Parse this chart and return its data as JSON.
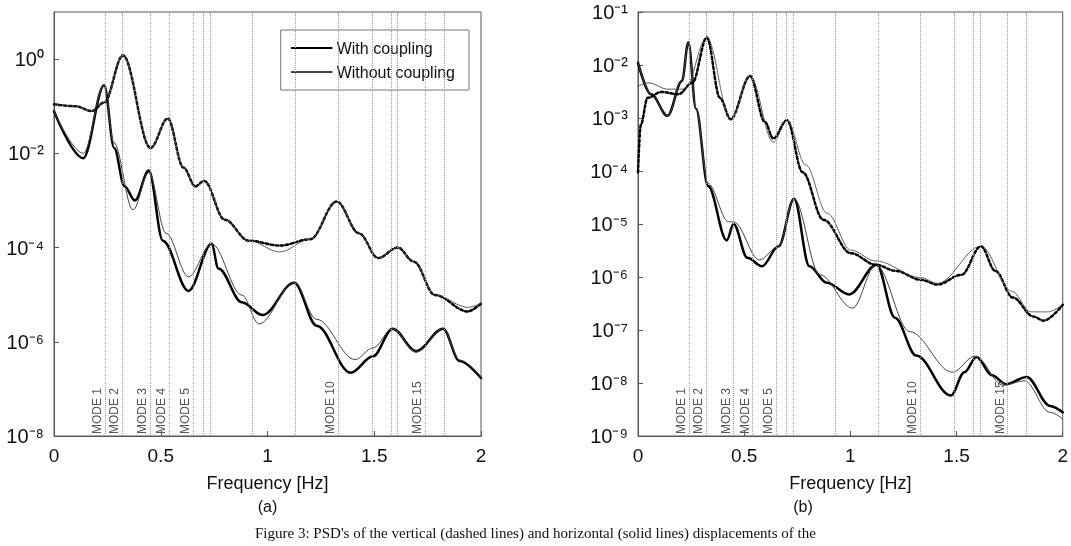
{
  "chart_data": [
    {
      "type": "line",
      "xlabel": "Frequency [Hz]",
      "annotations": [
        "(a)",
        "Figure 3: PSD's of the vertical (dashed lines) and horizontal (solid lines) displacements of the"
      ],
      "xlim": [
        0,
        2
      ],
      "xticks": [
        0,
        0.5,
        1,
        1.5,
        2
      ],
      "ylim": [
        1e-08,
        10
      ],
      "yticks": [
        {
          "value": 1e-08,
          "label": "10⁻⁸"
        },
        {
          "value": 1e-06,
          "label": "10⁻⁶"
        },
        {
          "value": 0.0001,
          "label": "10⁻⁴"
        },
        {
          "value": 0.01,
          "label": "10⁻²"
        },
        {
          "value": 1,
          "label": "10⁰"
        }
      ],
      "log": "y",
      "grid": false,
      "legend": "top right",
      "ref_lines": [
        {
          "axis": "x",
          "value": 0.24,
          "label": "MODE 1"
        },
        {
          "axis": "x",
          "value": 0.32,
          "label": "MODE 2"
        },
        {
          "axis": "x",
          "value": 0.45,
          "label": "MODE 3"
        },
        {
          "axis": "x",
          "value": 0.535,
          "label": "MODE 4"
        },
        {
          "axis": "x",
          "value": 0.65,
          "label": "MODE 5"
        },
        {
          "axis": "x",
          "value": 0.705
        },
        {
          "axis": "x",
          "value": 0.735
        },
        {
          "axis": "x",
          "value": 0.93
        },
        {
          "axis": "x",
          "value": 1.13
        },
        {
          "axis": "x",
          "value": 1.33,
          "label": "MODE 10"
        },
        {
          "axis": "x",
          "value": 1.49
        },
        {
          "axis": "x",
          "value": 1.585
        },
        {
          "axis": "x",
          "value": 1.61
        },
        {
          "axis": "x",
          "value": 1.74,
          "label": "MODE 15"
        },
        {
          "axis": "x",
          "value": 1.83
        }
      ],
      "series": [
        {
          "name": "With coupling",
          "color": "#000000",
          "line_style": "solid",
          "x": [
            0,
            0.137,
            0.235,
            0.282,
            0.33,
            0.379,
            0.444,
            0.51,
            0.63,
            0.738,
            0.77,
            0.88,
            0.977,
            1.125,
            1.23,
            1.389,
            1.494,
            1.586,
            1.696,
            1.822,
            1.9,
            2
          ],
          "values": [
            0.078,
            0.0079,
            0.28,
            0.013,
            0.002,
            0.001,
            0.0043,
            0.00014,
            1.2e-05,
            0.00012,
            3.6e-05,
            6.9e-06,
            3.7e-06,
            1.8e-05,
            2.2e-06,
            2.2e-07,
            4.9e-07,
            1.9e-06,
            6.3e-07,
            1.9e-06,
            3.9e-07,
            1.7e-07
          ]
        },
        {
          "name": "Without coupling",
          "color": "#444444",
          "line_style": "solid",
          "x": [
            0,
            0.137,
            0.235,
            0.28,
            0.37,
            0.444,
            0.525,
            0.63,
            0.738,
            0.88,
            0.96,
            1.125,
            1.23,
            1.41,
            1.494,
            1.586,
            1.696,
            1.822,
            1.9,
            2
          ],
          "values": [
            0.078,
            0.01,
            0.28,
            0.017,
            0.00063,
            0.0039,
            0.0002,
            2.4e-05,
            0.00012,
            9.8e-06,
            2.4e-06,
            1.8e-05,
            3e-06,
            4.2e-07,
            7.4e-07,
            1.9e-06,
            6e-07,
            1.9e-06,
            4.1e-07,
            1.8e-07
          ]
        },
        {
          "color": "#000000",
          "line_style": "dotted",
          "x": [
            0,
            0.1,
            0.177,
            0.235,
            0.323,
            0.452,
            0.533,
            0.606,
            0.662,
            0.703,
            0.8,
            0.912,
            1.057,
            1.2,
            1.324,
            1.429,
            1.518,
            1.61,
            1.686,
            1.784,
            1.938,
            2
          ],
          "values": [
            0.11,
            0.1,
            0.079,
            0.12,
            1.2,
            0.013,
            0.055,
            0.005,
            0.002,
            0.0026,
            0.00039,
            0.00014,
            0.00011,
            0.00015,
            0.00095,
            0.0002,
            6e-05,
            0.0001,
            5e-05,
            9.8e-06,
            4.4e-06,
            6.5e-06
          ]
        },
        {
          "color": "#444444",
          "line_style": "dotted",
          "x": [
            0,
            0.1,
            0.177,
            0.235,
            0.323,
            0.452,
            0.533,
            0.606,
            0.662,
            0.703,
            0.8,
            0.912,
            1.057,
            1.2,
            1.324,
            1.429,
            1.518,
            1.61,
            1.686,
            1.784,
            1.938,
            2
          ],
          "values": [
            0.11,
            0.1,
            0.079,
            0.12,
            1.2,
            0.013,
            0.055,
            0.005,
            0.0019,
            0.0026,
            0.00039,
            0.00014,
            8.1e-05,
            0.00015,
            0.00095,
            0.0002,
            6e-05,
            0.0001,
            5e-05,
            9.8e-06,
            5.4e-06,
            6.5e-06
          ]
        }
      ]
    },
    {
      "type": "line",
      "xlabel": "Frequency [Hz]",
      "annotations": [
        "(b)"
      ],
      "xlim": [
        0,
        2
      ],
      "xticks": [
        0,
        0.5,
        1,
        1.5,
        2
      ],
      "ylim": [
        1e-09,
        0.1
      ],
      "yticks": [
        {
          "value": 1e-09,
          "label": "10⁻⁹"
        },
        {
          "value": 1e-08,
          "label": "10⁻⁸"
        },
        {
          "value": 1e-07,
          "label": "10⁻⁷"
        },
        {
          "value": 1e-06,
          "label": "10⁻⁶"
        },
        {
          "value": 1e-05,
          "label": "10⁻⁵"
        },
        {
          "value": 0.0001,
          "label": "10⁻⁴"
        },
        {
          "value": 0.001,
          "label": "10⁻³"
        },
        {
          "value": 0.01,
          "label": "10⁻²"
        },
        {
          "value": 0.1,
          "label": "10⁻¹"
        }
      ],
      "log": "y",
      "grid": false,
      "ref_lines": [
        {
          "axis": "x",
          "value": 0.24,
          "label": "MODE 1"
        },
        {
          "axis": "x",
          "value": 0.32,
          "label": "MODE 2"
        },
        {
          "axis": "x",
          "value": 0.45,
          "label": "MODE 3"
        },
        {
          "axis": "x",
          "value": 0.535,
          "label": "MODE 4"
        },
        {
          "axis": "x",
          "value": 0.65,
          "label": "MODE 5"
        },
        {
          "axis": "x",
          "value": 0.705
        },
        {
          "axis": "x",
          "value": 0.735
        },
        {
          "axis": "x",
          "value": 0.93
        },
        {
          "axis": "x",
          "value": 1.13
        },
        {
          "axis": "x",
          "value": 1.33,
          "label": "MODE 10"
        },
        {
          "axis": "x",
          "value": 1.49
        },
        {
          "axis": "x",
          "value": 1.585
        },
        {
          "axis": "x",
          "value": 1.61
        },
        {
          "axis": "x",
          "value": 1.74,
          "label": "MODE 15"
        },
        {
          "axis": "x",
          "value": 1.83
        }
      ],
      "series": [
        {
          "color": "#000000",
          "line_style": "solid",
          "x": [
            0,
            0.062,
            0.139,
            0.207,
            0.237,
            0.273,
            0.33,
            0.418,
            0.45,
            0.515,
            0.584,
            0.662,
            0.735,
            0.807,
            0.889,
            0.994,
            1.124,
            1.21,
            1.31,
            1.473,
            1.537,
            1.594,
            1.667,
            1.732,
            1.83,
            1.94,
            2
          ],
          "values": [
            0.011,
            0.0028,
            0.0011,
            0.005,
            0.027,
            0.0015,
            5.2e-05,
            4.9e-06,
            1e-05,
            2.3e-06,
            1.6e-06,
            3.8e-06,
            3e-05,
            1.6e-06,
            7.8e-07,
            4.7e-07,
            1.7e-06,
            1.7e-07,
            3.3e-08,
            5.8e-09,
            1.6e-08,
            3.1e-08,
            1.4e-08,
            9.5e-09,
            1.3e-08,
            3.7e-09,
            2.8e-09
          ]
        },
        {
          "color": "#444444",
          "line_style": "solid",
          "x": [
            0,
            0.062,
            0.139,
            0.207,
            0.237,
            0.273,
            0.33,
            0.426,
            0.45,
            0.572,
            0.662,
            0.735,
            0.856,
            1.01,
            1.12,
            1.28,
            1.48,
            1.587,
            1.72,
            1.82,
            1.94,
            2
          ],
          "values": [
            0.011,
            0.0028,
            0.0011,
            0.005,
            0.027,
            0.0015,
            5.8e-05,
            1.1e-05,
            1.1e-05,
            2.1e-06,
            3.8e-06,
            3e-05,
            1.1e-06,
            2.6e-07,
            1.7e-06,
            9.3e-08,
            1.6e-08,
            3.2e-08,
            9.1e-09,
            1.1e-08,
            2.8e-09,
            2.1e-09
          ]
        },
        {
          "color": "#000000",
          "line_style": "dotted",
          "x": [
            0,
            0.013,
            0.045,
            0.11,
            0.19,
            0.256,
            0.324,
            0.386,
            0.436,
            0.528,
            0.597,
            0.637,
            0.702,
            0.775,
            0.873,
            1.003,
            1.12,
            1.215,
            1.33,
            1.41,
            1.523,
            1.615,
            1.683,
            1.765,
            1.862,
            1.91,
            2
          ],
          "values": [
            9.5e-05,
            0.00074,
            0.0024,
            0.0031,
            0.0028,
            0.0046,
            0.033,
            0.0024,
            0.00095,
            0.0062,
            0.00085,
            0.00041,
            0.00091,
            9.5e-05,
            1.2e-05,
            2.8e-06,
            1.7e-06,
            1.3e-06,
            8.9e-07,
            7.2e-07,
            1.1e-06,
            3.8e-06,
            1.3e-06,
            4.1e-07,
            1.8e-07,
            1.5e-07,
            3e-07
          ]
        },
        {
          "color": "#444444",
          "line_style": "dotted",
          "x": [
            0,
            0.05,
            0.14,
            0.22,
            0.324,
            0.436,
            0.528,
            0.637,
            0.702,
            0.79,
            0.89,
            1.003,
            1.12,
            1.33,
            1.41,
            1.615,
            1.76,
            1.85,
            1.93,
            2
          ],
          "values": [
            0.004,
            0.0046,
            0.0035,
            0.0035,
            0.033,
            0.00095,
            0.0062,
            0.00035,
            0.00091,
            0.00013,
            1.6e-05,
            3.2e-06,
            2e-06,
            9.8e-07,
            7.6e-07,
            3.8e-06,
            5.4e-07,
            2.2e-07,
            2.2e-07,
            3e-07
          ]
        }
      ]
    }
  ]
}
